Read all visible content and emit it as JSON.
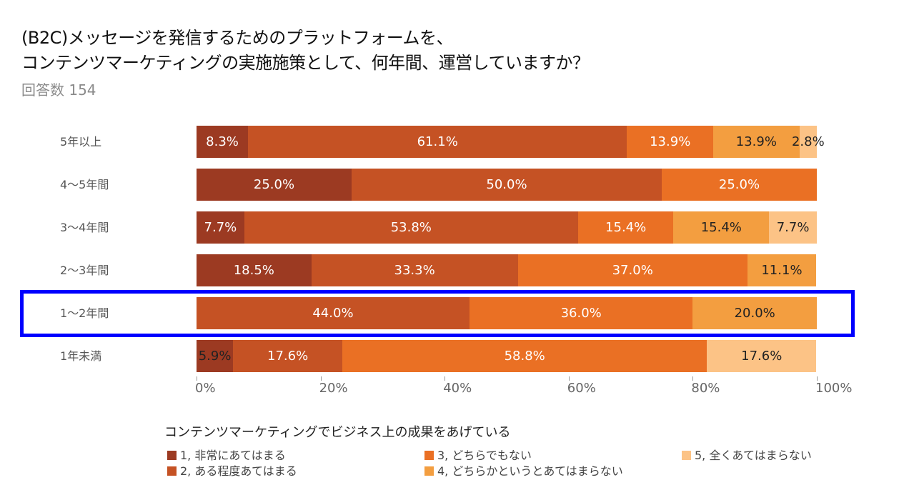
{
  "header": {
    "title_line1": "(B2C)メッセージを発信するためのプラットフォームを、",
    "title_line2": "コンテンツマーケティングの実施施策として、何年間、運営していますか？",
    "subtitle": "回答数 154"
  },
  "chart_data": {
    "type": "bar",
    "orientation": "horizontal",
    "stacked": "100%",
    "title": "(B2C)メッセージを発信するためのプラットフォームを、コンテンツマーケティングの実施施策として、何年間、運営していますか？",
    "subtitle": "回答数 154",
    "categories": [
      "5年以上",
      "4〜5年間",
      "3〜4年間",
      "2〜3年間",
      "1〜2年間",
      "1年未満"
    ],
    "legend_title": "コンテンツマーケティングでビジネス上の成果をあげている",
    "legend_placement": "bottom",
    "series": [
      {
        "name": "1, 非常にあてはまる",
        "color": "#9c3a22",
        "values": [
          8.3,
          25.0,
          7.7,
          18.5,
          0,
          5.9
        ]
      },
      {
        "name": "2, ある程度あてはまる",
        "color": "#c55224",
        "values": [
          61.1,
          50.0,
          53.8,
          33.3,
          44.0,
          17.6
        ]
      },
      {
        "name": "3, どちらでもない",
        "color": "#ea7024",
        "values": [
          13.9,
          25.0,
          15.4,
          37.0,
          36.0,
          58.8
        ]
      },
      {
        "name": "4, どちらかというとあてはまらない",
        "color": "#f39e40",
        "values": [
          13.9,
          0,
          15.4,
          11.1,
          20.0,
          0
        ]
      },
      {
        "name": "5, 全くあてはまらない",
        "color": "#fcc386",
        "values": [
          2.8,
          0,
          7.7,
          0,
          0,
          17.6
        ]
      }
    ],
    "label_colors": [
      "#ffffff",
      "#ffffff",
      "#ffffff",
      "#222222",
      "#222222"
    ],
    "xlim": [
      0,
      100
    ],
    "xticks": [
      "0%",
      "20%",
      "40%",
      "60%",
      "80%",
      "100%"
    ],
    "xtick_values": [
      0,
      20,
      40,
      60,
      80,
      100
    ],
    "highlighted_category": "1〜2年間",
    "highlight_color": "#0000ff",
    "grid": false
  }
}
